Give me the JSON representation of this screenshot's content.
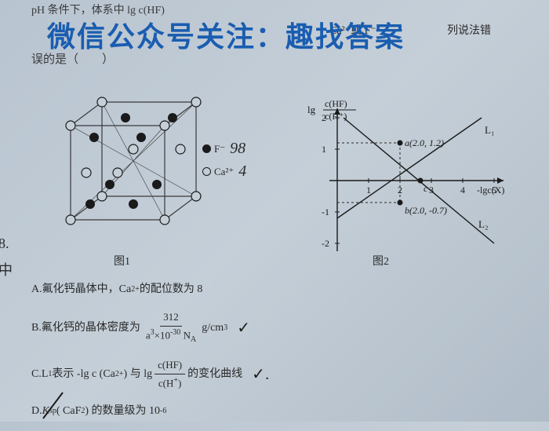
{
  "watermark": "微信公众号关注：趣找答案",
  "question_head": "pH 条件下，体系中 lg c(HF)",
  "question_frag_right": "Ca²⁺或 F⁻",
  "question_frag_end": "列说法错",
  "question_tail": "误的是（　　）",
  "legend": {
    "f_label": "F⁻",
    "ca_label": "Ca²⁺"
  },
  "handwritten": {
    "near_f": "98",
    "near_ca": "4",
    "margin_top": "8.",
    "margin_bottom": "中"
  },
  "figure1": {
    "label": "图1",
    "box_color": "#3a3a3a",
    "stroke_width": 1.2,
    "open_atoms": [
      [
        20,
        40
      ],
      [
        140,
        40
      ],
      [
        20,
        160
      ],
      [
        140,
        160
      ],
      [
        60,
        10
      ],
      [
        180,
        10
      ],
      [
        60,
        130
      ],
      [
        180,
        130
      ],
      [
        80,
        100
      ],
      [
        100,
        70
      ],
      [
        40,
        70
      ],
      [
        160,
        100
      ]
    ],
    "filled_atoms": [
      [
        50,
        55
      ],
      [
        110,
        55
      ],
      [
        50,
        115
      ],
      [
        110,
        115
      ],
      [
        90,
        25
      ],
      [
        150,
        25
      ],
      [
        90,
        145
      ],
      [
        150,
        145
      ]
    ],
    "open_r": 6,
    "filled_r": 6
  },
  "figure2": {
    "label": "图2",
    "y_axis_label_top": "c(HF)",
    "y_axis_label_bot": "c(H⁺)",
    "y_axis_prefix": "lg",
    "x_axis_label": "-lgc(X)",
    "xlim": [
      0,
      5
    ],
    "ylim": [
      -2,
      2
    ],
    "xticks": [
      1,
      2,
      3,
      4,
      5
    ],
    "yticks": [
      -2,
      -1,
      1,
      2
    ],
    "grid_color": "#2a2a2a",
    "axis_color": "#1a1a1a",
    "line_L1": {
      "label": "L₁",
      "x1": 0,
      "y1": -1.2,
      "x2": 4.6,
      "y2": 2.0,
      "color": "#1a1a1a",
      "width": 1.4
    },
    "line_L2": {
      "label": "L₂",
      "x1": 0.2,
      "y1": 2.0,
      "x2": 5.0,
      "y2": -2.0,
      "color": "#1a1a1a",
      "width": 1.4
    },
    "points": {
      "a": {
        "x": 2.0,
        "y": 1.2,
        "label": "a(2.0, 1.2)",
        "fill": "#1a1a1a"
      },
      "b": {
        "x": 2.0,
        "y": -0.7,
        "label": "b(2.0, -0.7)",
        "fill": "#1a1a1a"
      },
      "c": {
        "x": 2.65,
        "y": 0,
        "label": "c",
        "fill": "#1a1a1a"
      }
    },
    "dash_color": "#2a2a2a"
  },
  "options": {
    "A": {
      "prefix": "A.",
      "text1": "氟化钙晶体中，Ca",
      "super": "2+",
      "text2": "的配位数为 8"
    },
    "B": {
      "prefix": "B.",
      "text1": "氟化钙的晶体密度为",
      "frac_num": "312",
      "frac_den_a": "a",
      "frac_den_exp1": "3",
      "frac_den_mid": "×10",
      "frac_den_exp2": "-30",
      "frac_den_na": " N",
      "frac_den_na_sub": "A",
      "unit": "g/cm",
      "unit_sup": "3",
      "check": "✓"
    },
    "C": {
      "prefix": "C.",
      "text1": "L",
      "sub1": "1",
      "text2": "表示 -lg c (Ca",
      "sup1": "2+",
      "text3": ") 与 lg",
      "frac_num_a": "c(HF)",
      "frac_den_a": "c(H",
      "frac_den_sup": "+",
      "frac_den_close": ")",
      "text4": "的变化曲线",
      "check": "✓."
    },
    "D": {
      "prefix": "D.",
      "text1": "K",
      "sub1": "sp",
      "text2": "( CaF",
      "sub2": "2",
      "text3": " ) 的数量级为 10",
      "sup1": "-6"
    }
  }
}
